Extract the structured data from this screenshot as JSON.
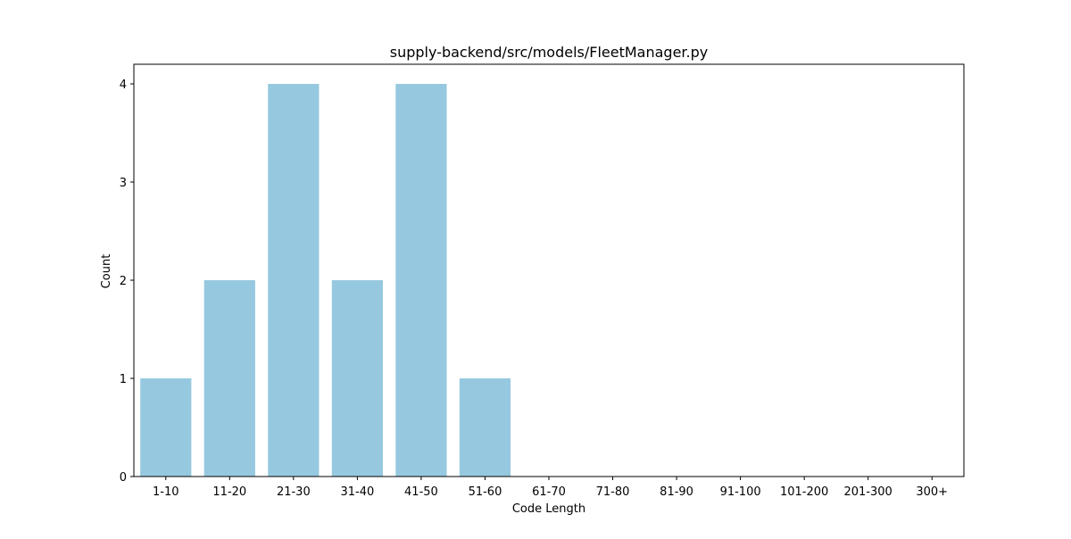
{
  "chart_data": {
    "type": "bar",
    "title": "supply-backend/src/models/FleetManager.py",
    "xlabel": "Code Length",
    "ylabel": "Count",
    "categories": [
      "1-10",
      "11-20",
      "21-30",
      "31-40",
      "41-50",
      "51-60",
      "61-70",
      "71-80",
      "81-90",
      "91-100",
      "101-200",
      "201-300",
      "300+"
    ],
    "values": [
      1,
      2,
      4,
      2,
      4,
      1,
      0,
      0,
      0,
      0,
      0,
      0,
      0
    ],
    "ylim": [
      0,
      4.2
    ],
    "yticks": [
      0,
      1,
      2,
      3,
      4
    ],
    "grid": false,
    "bar_color": "#96c9df"
  }
}
